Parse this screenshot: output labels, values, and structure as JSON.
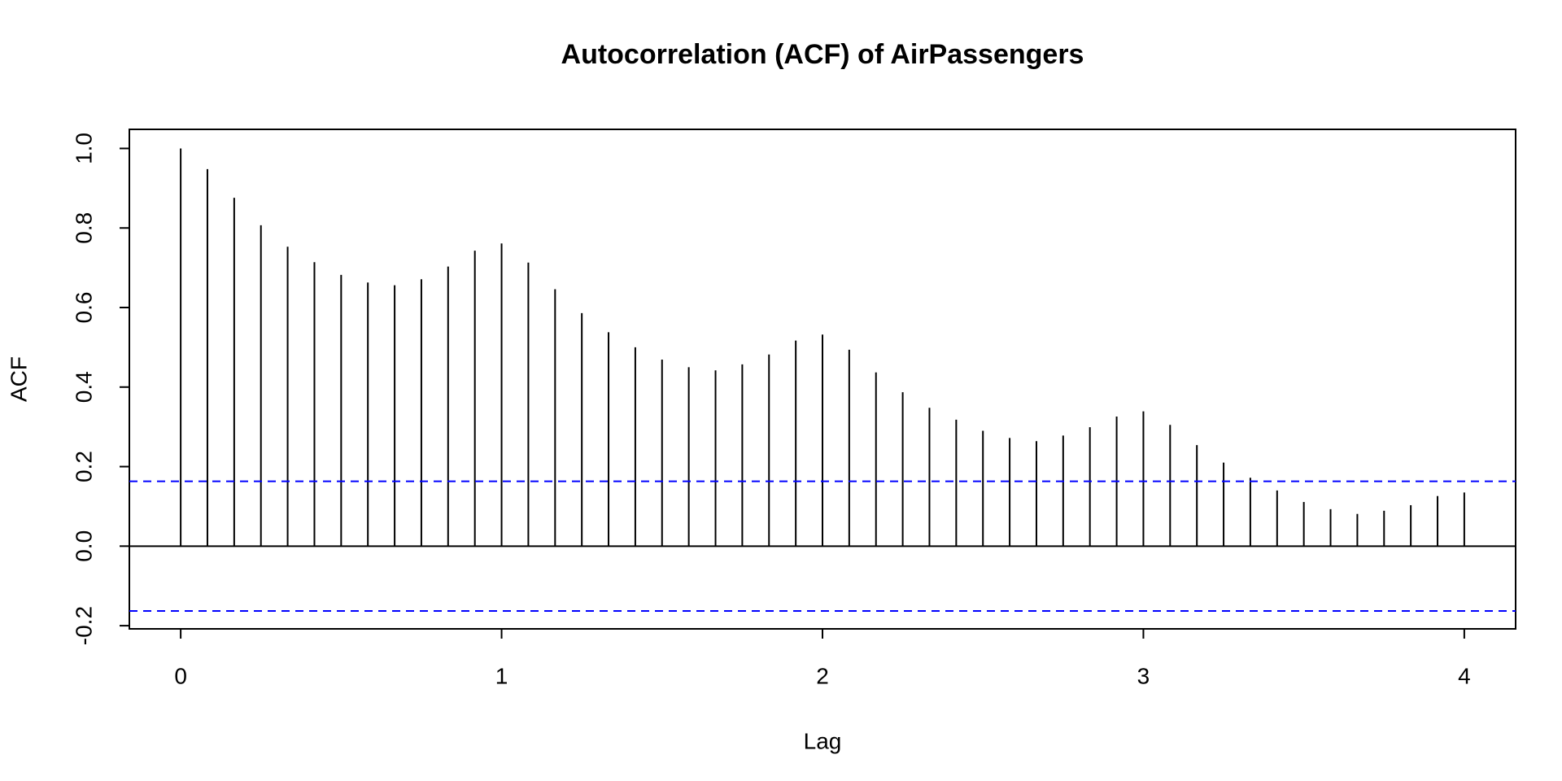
{
  "chart_data": {
    "type": "acf",
    "title": "Autocorrelation (ACF) of AirPassengers",
    "xlabel": "Lag",
    "ylabel": "ACF",
    "x": [
      0,
      0.0833,
      0.1667,
      0.25,
      0.3333,
      0.4167,
      0.5,
      0.5833,
      0.6667,
      0.75,
      0.8333,
      0.9167,
      1,
      1.0833,
      1.1667,
      1.25,
      1.3333,
      1.4167,
      1.5,
      1.5833,
      1.6667,
      1.75,
      1.8333,
      1.9167,
      2,
      2.0833,
      2.1667,
      2.25,
      2.3333,
      2.4167,
      2.5,
      2.5833,
      2.6667,
      2.75,
      2.8333,
      2.9167,
      3,
      3.0833,
      3.1667,
      3.25,
      3.3333,
      3.4167,
      3.5,
      3.5833,
      3.6667,
      3.75,
      3.8333,
      3.9167,
      4
    ],
    "values": [
      1.0,
      0.948,
      0.876,
      0.807,
      0.753,
      0.714,
      0.682,
      0.663,
      0.656,
      0.671,
      0.703,
      0.743,
      0.761,
      0.713,
      0.646,
      0.586,
      0.538,
      0.5,
      0.469,
      0.45,
      0.442,
      0.457,
      0.482,
      0.517,
      0.532,
      0.494,
      0.437,
      0.387,
      0.348,
      0.318,
      0.29,
      0.272,
      0.264,
      0.278,
      0.299,
      0.326,
      0.339,
      0.305,
      0.254,
      0.21,
      0.172,
      0.14,
      0.111,
      0.093,
      0.081,
      0.089,
      0.103,
      0.126,
      0.135
    ],
    "color": "#000000",
    "ci": [
      0.163,
      -0.163
    ],
    "ci_color": "#0000ff",
    "xlim": [
      -0.16,
      4.16
    ],
    "xticks": [
      0,
      1,
      2,
      3,
      4
    ],
    "ylim": [
      -0.208,
      1.048
    ],
    "yticks": [
      {
        "value": -0.2,
        "label": "-0.2"
      },
      {
        "value": 0,
        "label": "0.0"
      },
      {
        "value": 0.2,
        "label": "0.2"
      },
      {
        "value": 0.4,
        "label": "0.4"
      },
      {
        "value": 0.6,
        "label": "0.6"
      },
      {
        "value": 0.8,
        "label": "0.8"
      },
      {
        "value": 1,
        "label": "1.0"
      }
    ]
  }
}
